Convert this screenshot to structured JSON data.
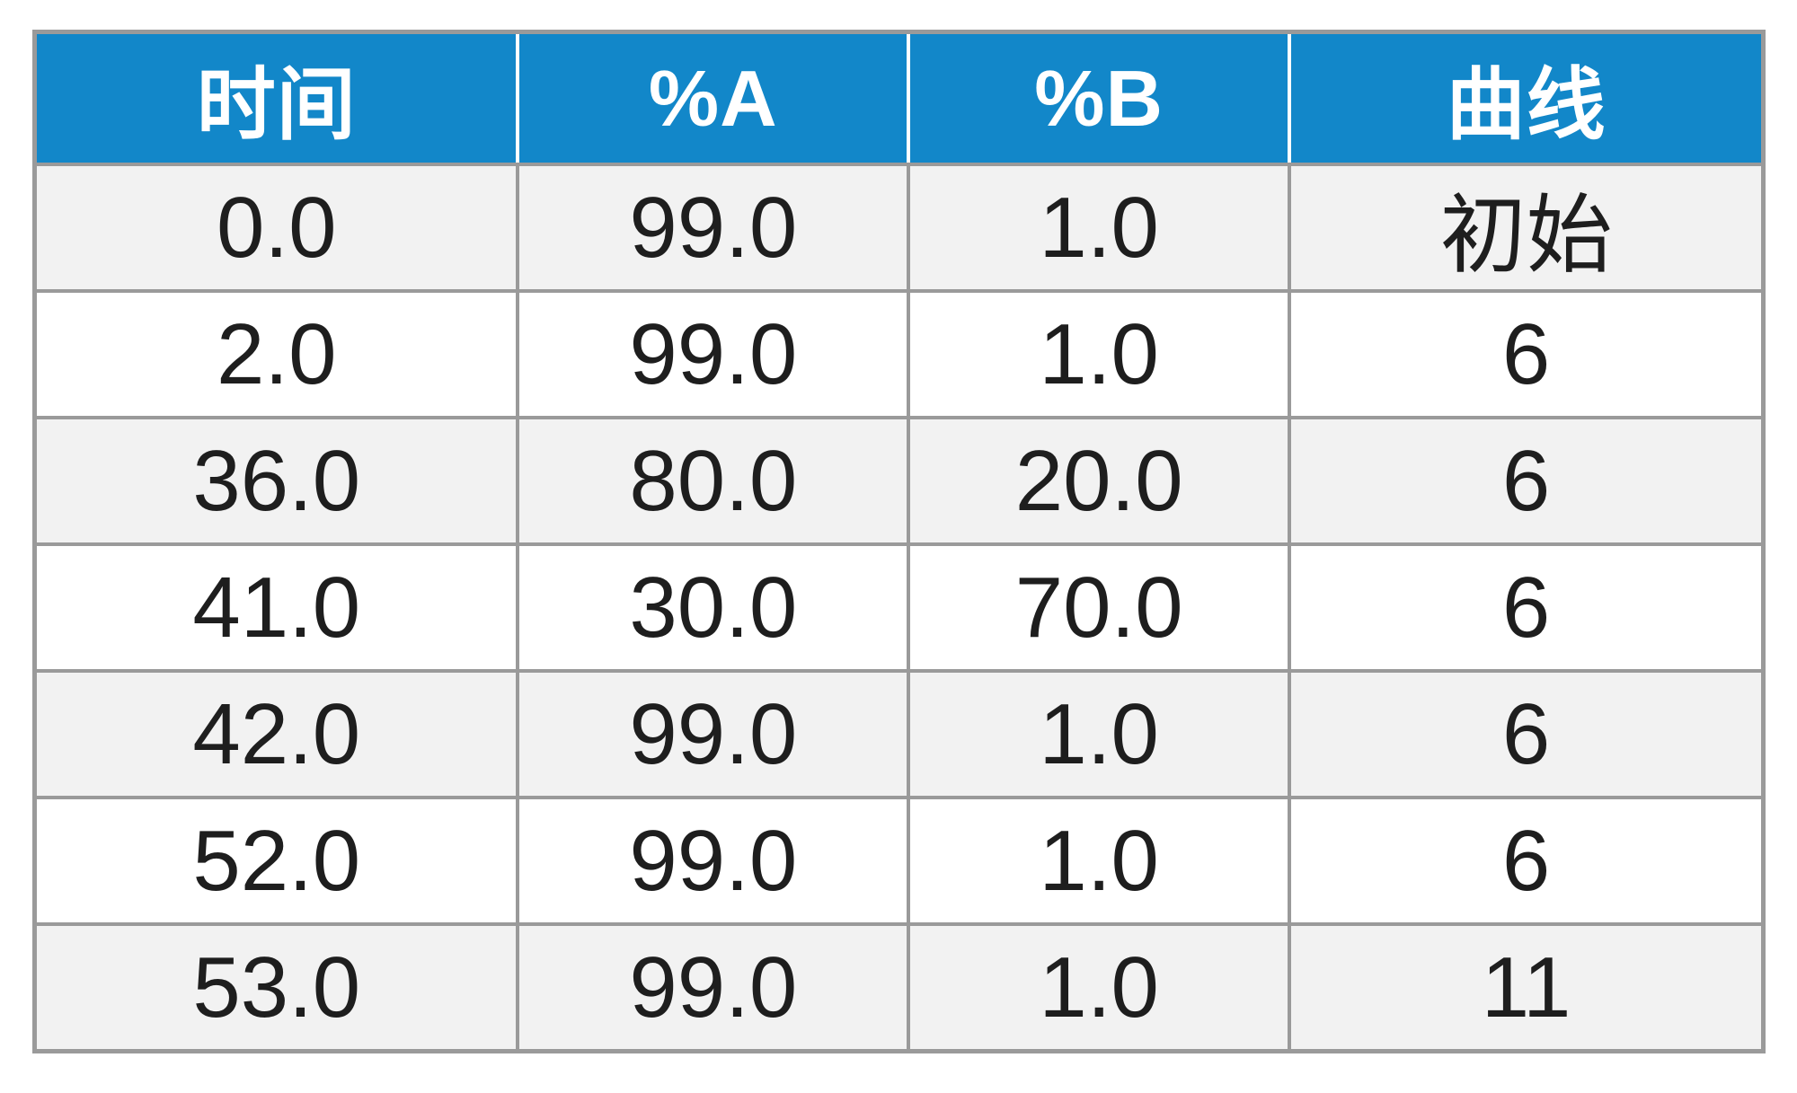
{
  "table": {
    "headers": [
      "时间",
      "%A",
      "%B",
      "曲线"
    ],
    "rows": [
      {
        "cells": [
          "0.0",
          "99.0",
          "1.0",
          "初始"
        ]
      },
      {
        "cells": [
          "2.0",
          "99.0",
          "1.0",
          "6"
        ]
      },
      {
        "cells": [
          "36.0",
          "80.0",
          "20.0",
          "6"
        ]
      },
      {
        "cells": [
          "41.0",
          "30.0",
          "70.0",
          "6"
        ]
      },
      {
        "cells": [
          "42.0",
          "99.0",
          "1.0",
          "6"
        ]
      },
      {
        "cells": [
          "52.0",
          "99.0",
          "1.0",
          "6"
        ]
      },
      {
        "cells": [
          "53.0",
          "99.0",
          "1.0",
          "11"
        ]
      }
    ],
    "colors": {
      "header_bg": "#1287c9",
      "header_text": "#ffffff",
      "grid_border": "#9a9a9a",
      "row_alt_bg": "#f2f2f2",
      "row_bg": "#ffffff",
      "body_text": "#1e1e1e"
    }
  }
}
